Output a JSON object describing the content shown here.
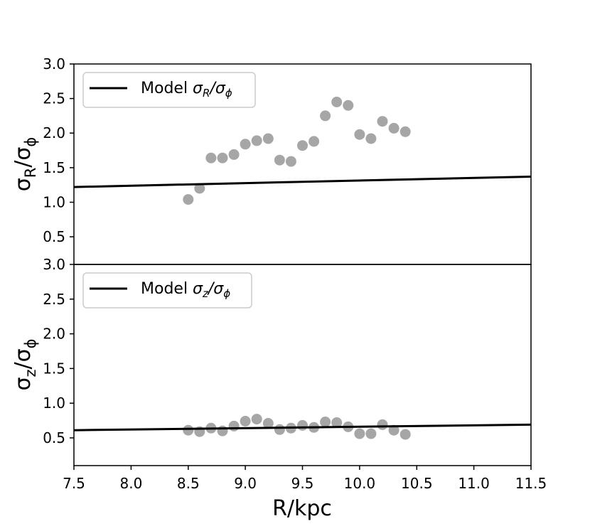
{
  "chart_data": [
    {
      "type": "scatter",
      "ylabel": "σR/σϕ",
      "xlim": [
        7.5,
        11.5
      ],
      "ylim": [
        0.1,
        3.0
      ],
      "yticks": [
        "0.5",
        "1.0",
        "1.5",
        "2.0",
        "2.5",
        "3.0"
      ],
      "grid": false,
      "legend_position": "upper-left",
      "legend_label": "Model σR/σϕ",
      "colors": {
        "points": "#a6a6a6",
        "line": "#000000"
      },
      "series": [
        {
          "kind": "scatter",
          "x": [
            8.5,
            8.6,
            8.7,
            8.8,
            8.9,
            9.0,
            9.1,
            9.2,
            9.3,
            9.4,
            9.5,
            9.6,
            9.7,
            9.8,
            9.9,
            10.0,
            10.1,
            10.2,
            10.3,
            10.4
          ],
          "y": [
            1.04,
            1.2,
            1.64,
            1.64,
            1.69,
            1.84,
            1.89,
            1.92,
            1.61,
            1.59,
            1.82,
            1.88,
            2.25,
            2.45,
            2.4,
            1.98,
            1.92,
            2.17,
            2.07,
            2.02
          ]
        },
        {
          "name": "Model σR/σϕ",
          "kind": "line",
          "x": [
            7.5,
            11.5
          ],
          "y": [
            1.22,
            1.37
          ]
        }
      ]
    },
    {
      "type": "scatter",
      "xlabel": "R/kpc",
      "ylabel": "σz/σϕ",
      "xlim": [
        7.5,
        11.5
      ],
      "ylim": [
        0.1,
        3.0
      ],
      "xticks": [
        "7.5",
        "8.0",
        "8.5",
        "9.0",
        "9.5",
        "10.0",
        "10.5",
        "11.0",
        "11.5"
      ],
      "yticks": [
        "0.5",
        "1.0",
        "1.5",
        "2.0",
        "2.5",
        "3.0"
      ],
      "grid": false,
      "legend_position": "upper-left",
      "legend_label": "Model σz/σϕ",
      "colors": {
        "points": "#a6a6a6",
        "line": "#000000"
      },
      "series": [
        {
          "kind": "scatter",
          "x": [
            8.5,
            8.6,
            8.7,
            8.8,
            8.9,
            9.0,
            9.1,
            9.2,
            9.3,
            9.4,
            9.5,
            9.6,
            9.7,
            9.8,
            9.9,
            10.0,
            10.1,
            10.2,
            10.3,
            10.4
          ],
          "y": [
            0.61,
            0.59,
            0.64,
            0.6,
            0.67,
            0.74,
            0.77,
            0.71,
            0.62,
            0.64,
            0.68,
            0.65,
            0.73,
            0.72,
            0.66,
            0.56,
            0.56,
            0.69,
            0.61,
            0.55
          ]
        },
        {
          "name": "Model σz/σϕ",
          "kind": "line",
          "x": [
            7.5,
            11.5
          ],
          "y": [
            0.61,
            0.69
          ]
        }
      ]
    }
  ]
}
